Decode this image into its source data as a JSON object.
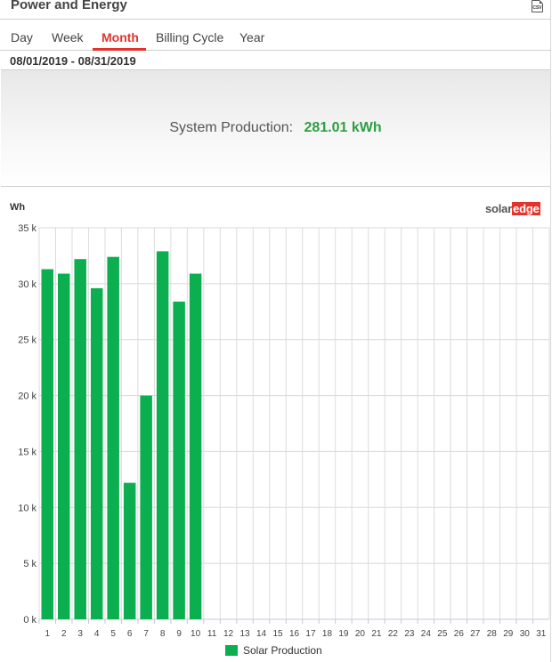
{
  "panel": {
    "title": "Power and Energy",
    "csv_icon": "csv-file-icon",
    "csv_label": "CSV"
  },
  "tabs": [
    {
      "label": "Day",
      "active": false
    },
    {
      "label": "Week",
      "active": false
    },
    {
      "label": "Month",
      "active": true
    },
    {
      "label": "Billing Cycle",
      "active": false
    },
    {
      "label": "Year",
      "active": false
    }
  ],
  "date_range": "08/01/2019 - 08/31/2019",
  "summary": {
    "label": "System Production:",
    "value": "281.01 kWh"
  },
  "logo": {
    "part1": "solar",
    "part2": "edge"
  },
  "colors": {
    "accent_red": "#e2342d",
    "bar_green": "#0caf50",
    "value_green": "#2f9e44"
  },
  "chart_data": {
    "type": "bar",
    "ylabel": "Wh",
    "ylim": [
      0,
      35000
    ],
    "yticks": [
      0,
      5000,
      10000,
      15000,
      20000,
      25000,
      30000,
      35000
    ],
    "ytick_labels": [
      "0 k",
      "5 k",
      "10 k",
      "15 k",
      "20 k",
      "25 k",
      "30 k",
      "35 k"
    ],
    "categories": [
      "1",
      "2",
      "3",
      "4",
      "5",
      "6",
      "7",
      "8",
      "9",
      "10",
      "11",
      "12",
      "13",
      "14",
      "15",
      "16",
      "17",
      "18",
      "19",
      "20",
      "21",
      "22",
      "23",
      "24",
      "25",
      "26",
      "27",
      "28",
      "29",
      "30",
      "31"
    ],
    "series": [
      {
        "name": "Solar Production",
        "color": "#0caf50",
        "values": [
          31300,
          30900,
          32200,
          29600,
          32400,
          12200,
          20000,
          32900,
          28400,
          30900,
          null,
          null,
          null,
          null,
          null,
          null,
          null,
          null,
          null,
          null,
          null,
          null,
          null,
          null,
          null,
          null,
          null,
          null,
          null,
          null,
          null
        ]
      }
    ],
    "grid": true,
    "legend": "bottom-center"
  }
}
